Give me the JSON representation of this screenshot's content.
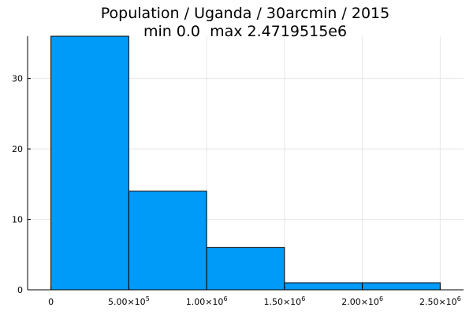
{
  "chart_data": {
    "type": "bar",
    "title": "Population / Uganda / 30arcmin / 2015",
    "subtitle": "min 0.0  max 2.4719515e6",
    "bin_edges": [
      0,
      500000,
      1000000,
      1500000,
      2000000,
      2500000
    ],
    "values": [
      36,
      14,
      6,
      1,
      1
    ],
    "xlim": [
      -150000,
      2650000
    ],
    "ylim": [
      0,
      36
    ],
    "x_ticks": [
      {
        "value": 0,
        "label": "0",
        "exp": ""
      },
      {
        "value": 500000,
        "label": "5.00×10",
        "exp": "5"
      },
      {
        "value": 1000000,
        "label": "1.00×10",
        "exp": "6"
      },
      {
        "value": 1500000,
        "label": "1.50×10",
        "exp": "6"
      },
      {
        "value": 2000000,
        "label": "2.00×10",
        "exp": "6"
      },
      {
        "value": 2500000,
        "label": "2.50×10",
        "exp": "6"
      }
    ],
    "y_ticks": [
      {
        "value": 0,
        "label": "0"
      },
      {
        "value": 10,
        "label": "10"
      },
      {
        "value": 20,
        "label": "20"
      },
      {
        "value": 30,
        "label": "30"
      }
    ],
    "bar_color": "#009af9",
    "grid": true,
    "legend": false
  }
}
